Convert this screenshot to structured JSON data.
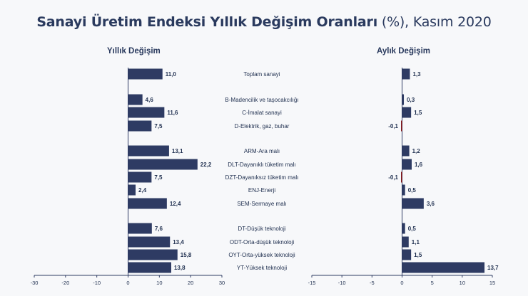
{
  "title": {
    "main": "Sanayi Üretim Endeksi Yıllık Değişim Oranları",
    "suffix": "(%), Kasım 2020"
  },
  "panels": {
    "left_title": "Yıllık Değişim",
    "right_title": "Aylık Değişim"
  },
  "colors": {
    "bar": "#2e3b63",
    "negative_bar": "#8a1c1c",
    "axis": "#2e3b63"
  },
  "chart_data": [
    {
      "type": "bar",
      "orientation": "horizontal",
      "title": "Yıllık Değişim",
      "xlim": [
        -30,
        30
      ],
      "ticks": [
        -30,
        -20,
        -10,
        0,
        10,
        20,
        30
      ],
      "categories": [
        "Toplam sanayi",
        "B-Madencilik ve taşocakcılığı",
        "C-İmalat sanayi",
        "D-Elektrik, gaz, buhar",
        "ARM-Ara malı",
        "DLT-Dayanıklı tüketim malı",
        "DZT-Dayanıksız tüketim malı",
        "ENJ-Enerji",
        "SEM-Sermaye malı",
        "DT-Düşük teknoloji",
        "ODT-Orta-düşük teknoloji",
        "OYT-Orta-yüksek teknoloji",
        "YT-Yüksek teknoloji"
      ],
      "values": [
        11.0,
        4.6,
        11.6,
        7.5,
        13.1,
        22.2,
        7.5,
        2.4,
        12.4,
        7.6,
        13.4,
        15.8,
        13.8
      ],
      "labels": [
        "11,0",
        "4,6",
        "11,6",
        "7,5",
        "13,1",
        "22,2",
        "7,5",
        "2,4",
        "12,4",
        "7,6",
        "13,4",
        "15,8",
        "13,8"
      ],
      "tick_labels": [
        "-30",
        "-20",
        "-10",
        "0",
        "10",
        "20",
        "30"
      ]
    },
    {
      "type": "bar",
      "orientation": "horizontal",
      "title": "Aylık Değişim",
      "xlim": [
        -15,
        15
      ],
      "ticks": [
        -15,
        -10,
        -5,
        0,
        5,
        10,
        15
      ],
      "categories": [
        "Toplam sanayi",
        "B-Madencilik ve taşocakcılığı",
        "C-İmalat sanayi",
        "D-Elektrik, gaz, buhar",
        "ARM-Ara malı",
        "DLT-Dayanıklı tüketim malı",
        "DZT-Dayanıksız tüketim malı",
        "ENJ-Enerji",
        "SEM-Sermaye malı",
        "DT-Düşük teknoloji",
        "ODT-Orta-düşük teknoloji",
        "OYT-Orta-yüksek teknoloji",
        "YT-Yüksek teknoloji"
      ],
      "values": [
        1.3,
        0.3,
        1.5,
        -0.1,
        1.2,
        1.6,
        -0.1,
        0.5,
        3.6,
        0.5,
        1.1,
        1.5,
        13.7
      ],
      "labels": [
        "1,3",
        "0,3",
        "1,5",
        "-0,1",
        "1,2",
        "1,6",
        "-0,1",
        "0,5",
        "3,6",
        "0,5",
        "1,1",
        "1,5",
        "13,7"
      ],
      "tick_labels": [
        "-15",
        "-10",
        "-5",
        "0",
        "5",
        "10",
        "15"
      ]
    }
  ]
}
